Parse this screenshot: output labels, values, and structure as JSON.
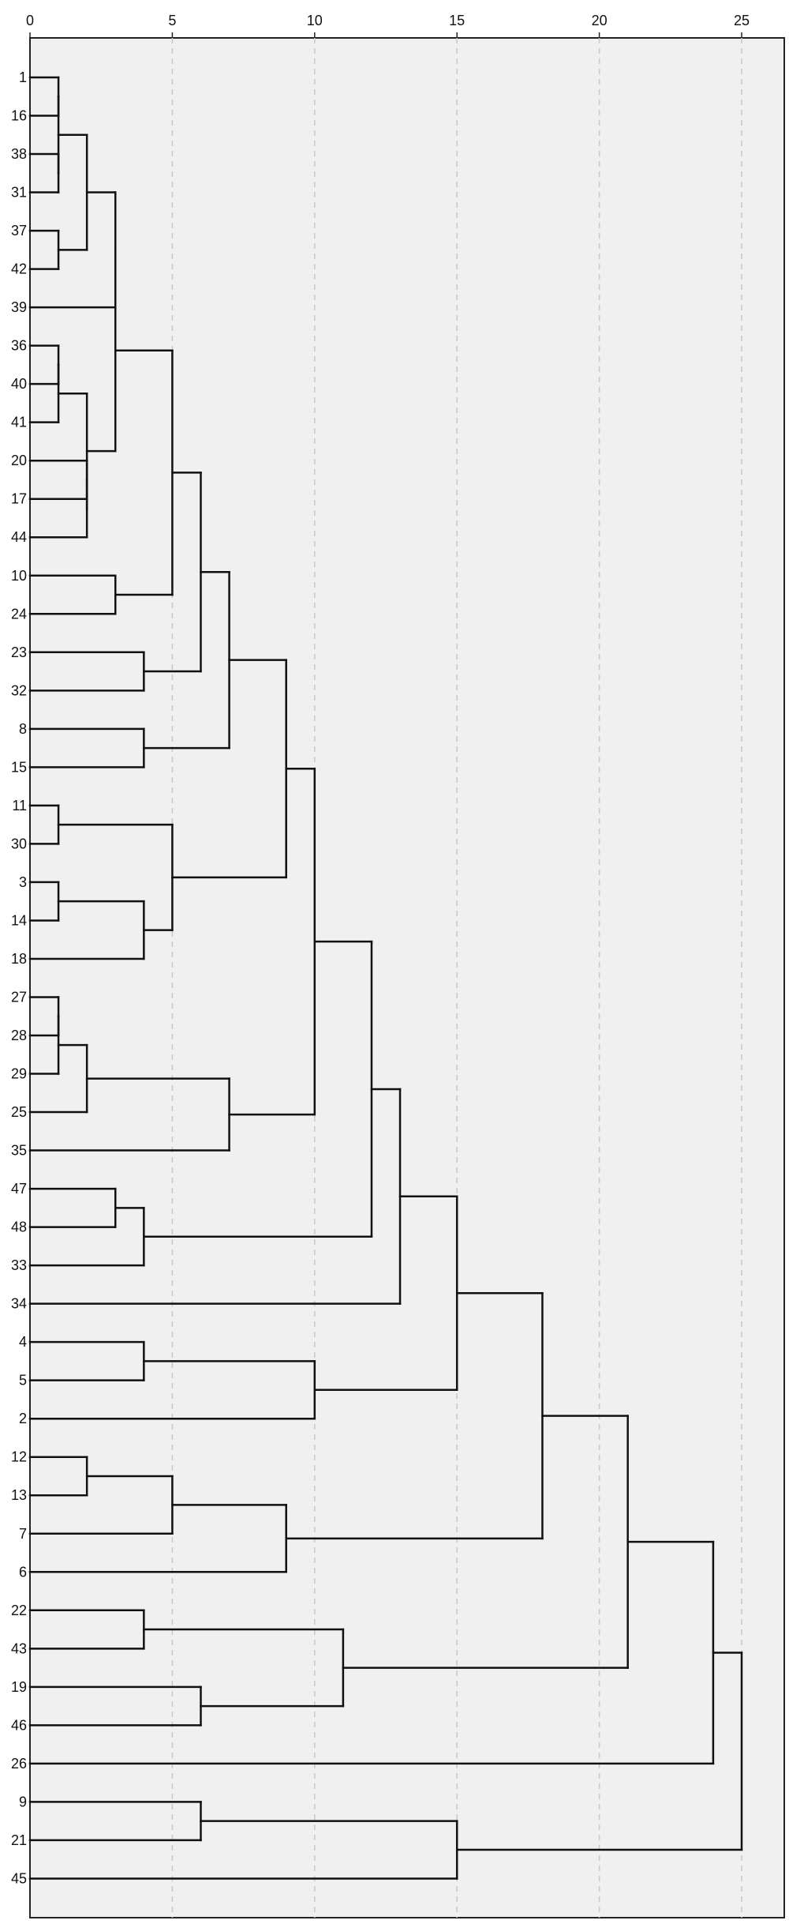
{
  "chart_data": {
    "type": "dendrogram",
    "orientation": "horizontal",
    "grid": true,
    "xlim": [
      0,
      26.5
    ],
    "x_ticks": [
      0,
      5,
      10,
      15,
      20,
      25
    ],
    "x_tick_labels": [
      "0",
      "5",
      "10",
      "15",
      "20",
      "25"
    ],
    "leaves": [
      "1",
      "16",
      "38",
      "31",
      "37",
      "42",
      "39",
      "36",
      "40",
      "41",
      "20",
      "17",
      "44",
      "10",
      "24",
      "23",
      "32",
      "8",
      "15",
      "11",
      "30",
      "3",
      "14",
      "18",
      "27",
      "28",
      "29",
      "25",
      "35",
      "47",
      "48",
      "33",
      "34",
      "4",
      "5",
      "2",
      "12",
      "13",
      "7",
      "6",
      "22",
      "43",
      "19",
      "46",
      "26",
      "9",
      "21",
      "45"
    ],
    "merges": [
      {
        "id": "c1",
        "children": [
          "1",
          "16"
        ],
        "height": 1
      },
      {
        "id": "c2",
        "children": [
          "38",
          "31"
        ],
        "height": 1
      },
      {
        "id": "c3",
        "children": [
          "c1",
          "c2"
        ],
        "height": 1
      },
      {
        "id": "c4",
        "children": [
          "37",
          "42"
        ],
        "height": 1
      },
      {
        "id": "c5",
        "children": [
          "c3",
          "c4"
        ],
        "height": 2
      },
      {
        "id": "c6",
        "children": [
          "36",
          "40"
        ],
        "height": 1
      },
      {
        "id": "c7",
        "children": [
          "c6",
          "41"
        ],
        "height": 1
      },
      {
        "id": "c8",
        "children": [
          "20",
          "17"
        ],
        "height": 2
      },
      {
        "id": "c9",
        "children": [
          "c8",
          "44"
        ],
        "height": 2
      },
      {
        "id": "c10",
        "children": [
          "c7",
          "c9"
        ],
        "height": 2
      },
      {
        "id": "c11",
        "children": [
          "c5",
          "39"
        ],
        "height": 3
      },
      {
        "id": "c12",
        "children": [
          "c11",
          "c10"
        ],
        "height": 3
      },
      {
        "id": "c13",
        "children": [
          "10",
          "24"
        ],
        "height": 3
      },
      {
        "id": "c14",
        "children": [
          "c12",
          "c13"
        ],
        "height": 5
      },
      {
        "id": "c15",
        "children": [
          "23",
          "32"
        ],
        "height": 4
      },
      {
        "id": "c16",
        "children": [
          "c14",
          "c15"
        ],
        "height": 6
      },
      {
        "id": "c17",
        "children": [
          "8",
          "15"
        ],
        "height": 4
      },
      {
        "id": "c18",
        "children": [
          "c16",
          "c17"
        ],
        "height": 7
      },
      {
        "id": "c19",
        "children": [
          "11",
          "30"
        ],
        "height": 1
      },
      {
        "id": "c20",
        "children": [
          "3",
          "14"
        ],
        "height": 1
      },
      {
        "id": "c21",
        "children": [
          "c20",
          "18"
        ],
        "height": 4
      },
      {
        "id": "c22",
        "children": [
          "c19",
          "c21"
        ],
        "height": 5
      },
      {
        "id": "c23",
        "children": [
          "c18",
          "c22"
        ],
        "height": 9
      },
      {
        "id": "c24",
        "children": [
          "27",
          "28"
        ],
        "height": 1
      },
      {
        "id": "c25",
        "children": [
          "c24",
          "29"
        ],
        "height": 1
      },
      {
        "id": "c26",
        "children": [
          "c25",
          "25"
        ],
        "height": 2
      },
      {
        "id": "c27",
        "children": [
          "c26",
          "35"
        ],
        "height": 7
      },
      {
        "id": "c28",
        "children": [
          "c23",
          "c27"
        ],
        "height": 10
      },
      {
        "id": "c29",
        "children": [
          "47",
          "48"
        ],
        "height": 3
      },
      {
        "id": "c30",
        "children": [
          "c29",
          "33"
        ],
        "height": 4
      },
      {
        "id": "c31",
        "children": [
          "c28",
          "c30"
        ],
        "height": 12
      },
      {
        "id": "c32",
        "children": [
          "c31",
          "34"
        ],
        "height": 13
      },
      {
        "id": "c33",
        "children": [
          "4",
          "5"
        ],
        "height": 4
      },
      {
        "id": "c34",
        "children": [
          "c33",
          "2"
        ],
        "height": 10
      },
      {
        "id": "c35",
        "children": [
          "c32",
          "c34"
        ],
        "height": 15
      },
      {
        "id": "c36",
        "children": [
          "12",
          "13"
        ],
        "height": 2
      },
      {
        "id": "c37",
        "children": [
          "c36",
          "7"
        ],
        "height": 5
      },
      {
        "id": "c38",
        "children": [
          "c37",
          "6"
        ],
        "height": 9
      },
      {
        "id": "c39",
        "children": [
          "c35",
          "c38"
        ],
        "height": 18
      },
      {
        "id": "c40",
        "children": [
          "22",
          "43"
        ],
        "height": 4
      },
      {
        "id": "c41",
        "children": [
          "19",
          "46"
        ],
        "height": 6
      },
      {
        "id": "c42",
        "children": [
          "c40",
          "c41"
        ],
        "height": 11
      },
      {
        "id": "c43",
        "children": [
          "c39",
          "c42"
        ],
        "height": 21
      },
      {
        "id": "c44",
        "children": [
          "c43",
          "26"
        ],
        "height": 24
      },
      {
        "id": "c45",
        "children": [
          "9",
          "21"
        ],
        "height": 6
      },
      {
        "id": "c46",
        "children": [
          "c45",
          "45"
        ],
        "height": 15
      },
      {
        "id": "c47",
        "children": [
          "c44",
          "c46"
        ],
        "height": 25
      }
    ]
  }
}
